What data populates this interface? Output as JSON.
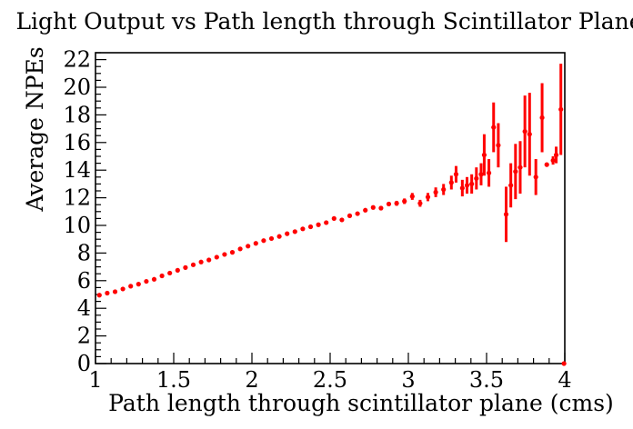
{
  "chart_data": {
    "type": "scatter",
    "title": "Light Output vs Path length through Scintillator Plane",
    "xlabel": "Path length through scintillator plane (cms)",
    "ylabel": "Average NPEs",
    "xlim": [
      1,
      4
    ],
    "ylim": [
      0,
      22.5
    ],
    "xticks": [
      "1",
      "1.5",
      "2",
      "2.5",
      "3",
      "3.5",
      "4"
    ],
    "yticks": [
      "0",
      "2",
      "4",
      "6",
      "8",
      "10",
      "12",
      "14",
      "16",
      "18",
      "20",
      "22"
    ],
    "grid": false,
    "marker_color": "#ff0000",
    "series": [
      {
        "points": [
          {
            "x": 1.025,
            "y": 4.95,
            "err": 0.08
          },
          {
            "x": 1.075,
            "y": 5.1,
            "err": 0.08
          },
          {
            "x": 1.125,
            "y": 5.2,
            "err": 0.08
          },
          {
            "x": 1.175,
            "y": 5.4,
            "err": 0.08
          },
          {
            "x": 1.225,
            "y": 5.6,
            "err": 0.08
          },
          {
            "x": 1.275,
            "y": 5.75,
            "err": 0.08
          },
          {
            "x": 1.325,
            "y": 5.95,
            "err": 0.08
          },
          {
            "x": 1.375,
            "y": 6.1,
            "err": 0.08
          },
          {
            "x": 1.425,
            "y": 6.35,
            "err": 0.08
          },
          {
            "x": 1.475,
            "y": 6.55,
            "err": 0.08
          },
          {
            "x": 1.525,
            "y": 6.75,
            "err": 0.08
          },
          {
            "x": 1.575,
            "y": 6.95,
            "err": 0.08
          },
          {
            "x": 1.625,
            "y": 7.15,
            "err": 0.08
          },
          {
            "x": 1.675,
            "y": 7.35,
            "err": 0.08
          },
          {
            "x": 1.725,
            "y": 7.5,
            "err": 0.08
          },
          {
            "x": 1.775,
            "y": 7.7,
            "err": 0.08
          },
          {
            "x": 1.825,
            "y": 7.9,
            "err": 0.08
          },
          {
            "x": 1.875,
            "y": 8.05,
            "err": 0.08
          },
          {
            "x": 1.925,
            "y": 8.3,
            "err": 0.08
          },
          {
            "x": 1.975,
            "y": 8.5,
            "err": 0.08
          },
          {
            "x": 2.025,
            "y": 8.7,
            "err": 0.08
          },
          {
            "x": 2.075,
            "y": 8.9,
            "err": 0.08
          },
          {
            "x": 2.125,
            "y": 9.05,
            "err": 0.08
          },
          {
            "x": 2.175,
            "y": 9.2,
            "err": 0.08
          },
          {
            "x": 2.225,
            "y": 9.4,
            "err": 0.08
          },
          {
            "x": 2.275,
            "y": 9.55,
            "err": 0.08
          },
          {
            "x": 2.325,
            "y": 9.75,
            "err": 0.08
          },
          {
            "x": 2.375,
            "y": 9.9,
            "err": 0.08
          },
          {
            "x": 2.425,
            "y": 10.05,
            "err": 0.1
          },
          {
            "x": 2.475,
            "y": 10.2,
            "err": 0.1
          },
          {
            "x": 2.525,
            "y": 10.5,
            "err": 0.1
          },
          {
            "x": 2.575,
            "y": 10.4,
            "err": 0.1
          },
          {
            "x": 2.625,
            "y": 10.7,
            "err": 0.12
          },
          {
            "x": 2.675,
            "y": 10.85,
            "err": 0.12
          },
          {
            "x": 2.725,
            "y": 11.1,
            "err": 0.12
          },
          {
            "x": 2.775,
            "y": 11.3,
            "err": 0.15
          },
          {
            "x": 2.825,
            "y": 11.25,
            "err": 0.15
          },
          {
            "x": 2.875,
            "y": 11.55,
            "err": 0.15
          },
          {
            "x": 2.925,
            "y": 11.6,
            "err": 0.18
          },
          {
            "x": 2.975,
            "y": 11.75,
            "err": 0.2
          },
          {
            "x": 3.025,
            "y": 12.1,
            "err": 0.25
          },
          {
            "x": 3.075,
            "y": 11.6,
            "err": 0.25
          },
          {
            "x": 3.125,
            "y": 12.05,
            "err": 0.3
          },
          {
            "x": 3.175,
            "y": 12.4,
            "err": 0.35
          },
          {
            "x": 3.225,
            "y": 12.6,
            "err": 0.4
          },
          {
            "x": 3.275,
            "y": 13.1,
            "err": 0.5
          },
          {
            "x": 3.305,
            "y": 13.7,
            "err": 0.6
          },
          {
            "x": 3.345,
            "y": 12.7,
            "err": 0.6
          },
          {
            "x": 3.375,
            "y": 12.9,
            "err": 0.6
          },
          {
            "x": 3.405,
            "y": 13.0,
            "err": 0.7
          },
          {
            "x": 3.435,
            "y": 13.4,
            "err": 0.8
          },
          {
            "x": 3.465,
            "y": 13.7,
            "err": 0.8
          },
          {
            "x": 3.485,
            "y": 15.1,
            "err": 1.5
          },
          {
            "x": 3.515,
            "y": 13.8,
            "err": 1.0
          },
          {
            "x": 3.545,
            "y": 17.1,
            "err": 1.8
          },
          {
            "x": 3.575,
            "y": 15.8,
            "err": 1.6
          },
          {
            "x": 3.625,
            "y": 10.8,
            "err": 2.0
          },
          {
            "x": 3.655,
            "y": 12.9,
            "err": 1.6
          },
          {
            "x": 3.685,
            "y": 13.9,
            "err": 2.0
          },
          {
            "x": 3.715,
            "y": 14.2,
            "err": 1.9
          },
          {
            "x": 3.745,
            "y": 16.8,
            "err": 2.6
          },
          {
            "x": 3.775,
            "y": 16.6,
            "err": 3.0
          },
          {
            "x": 3.815,
            "y": 13.5,
            "err": 1.3
          },
          {
            "x": 3.855,
            "y": 17.8,
            "err": 2.5
          },
          {
            "x": 3.885,
            "y": 14.4,
            "err": 0.1
          },
          {
            "x": 3.925,
            "y": 14.7,
            "err": 0.3
          },
          {
            "x": 3.945,
            "y": 15.1,
            "err": 0.6
          },
          {
            "x": 3.975,
            "y": 18.4,
            "err": 3.3
          },
          {
            "x": 3.995,
            "y": 0.0,
            "err": 0.0
          }
        ]
      }
    ]
  }
}
